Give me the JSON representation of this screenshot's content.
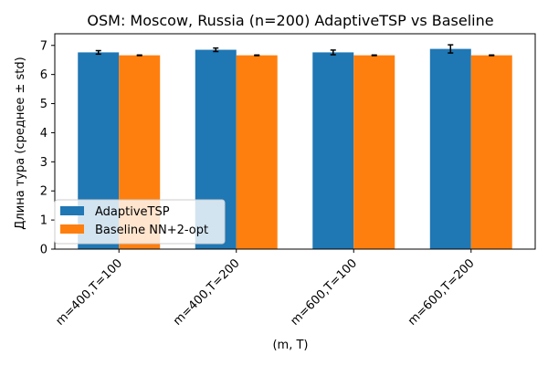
{
  "chart_data": {
    "type": "bar",
    "title": "OSM: Moscow, Russia (n=200) AdaptiveTSP vs Baseline",
    "xlabel": "(m, T)",
    "ylabel": "Длина тура (среднее ± std)",
    "categories": [
      "m=400,T=100",
      "m=400,T=200",
      "m=600,T=100",
      "m=600,T=200"
    ],
    "ylim": [
      0,
      7.4
    ],
    "yticks": [
      0,
      1,
      2,
      3,
      4,
      5,
      6,
      7
    ],
    "grid": false,
    "legend_position": "lower-left",
    "series": [
      {
        "name": "AdaptiveTSP",
        "color": "#1f77b4",
        "values": [
          6.76,
          6.85,
          6.76,
          6.88
        ],
        "errors": [
          0.06,
          0.06,
          0.08,
          0.14
        ]
      },
      {
        "name": "Baseline NN+2-opt",
        "color": "#ff7f0e",
        "values": [
          6.66,
          6.66,
          6.66,
          6.66
        ],
        "errors": [
          0.01,
          0.01,
          0.01,
          0.01
        ]
      }
    ]
  }
}
